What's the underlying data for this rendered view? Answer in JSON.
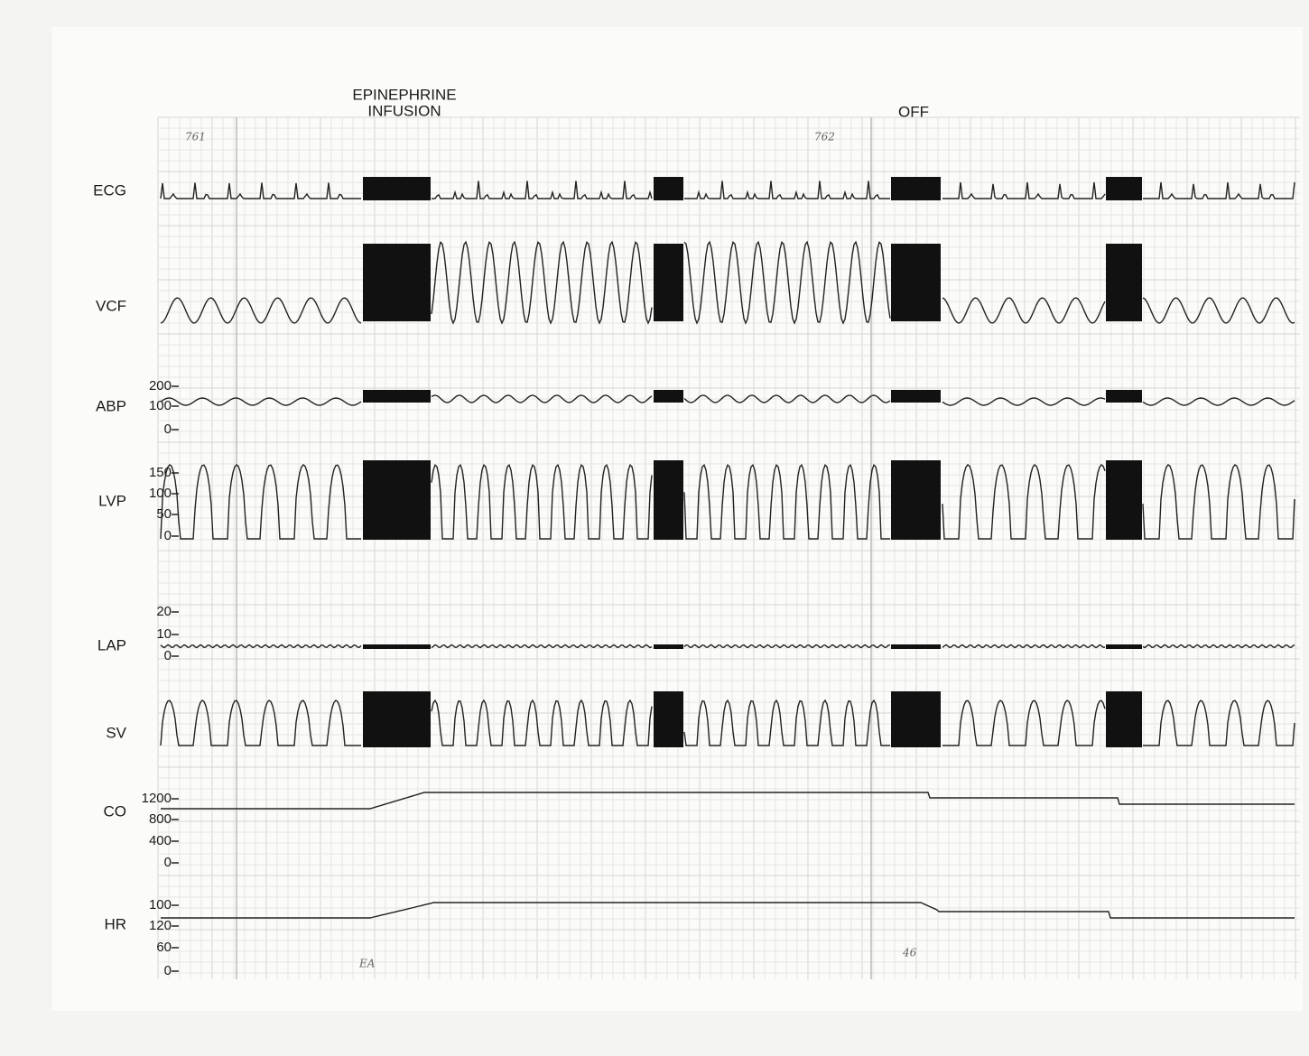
{
  "annotations": {
    "infusion": [
      "EPINEPHRINE",
      "INFUSION"
    ],
    "off": "OFF"
  },
  "page_marks": [
    "761",
    "762"
  ],
  "handwritten": [
    "EA",
    "46"
  ],
  "channels": [
    {
      "label": "ECG"
    },
    {
      "label": "VCF"
    },
    {
      "label": "ABP",
      "scale": [
        "200",
        "100",
        "0"
      ]
    },
    {
      "label": "LVP",
      "scale": [
        "150",
        "100",
        "50",
        "0"
      ]
    },
    {
      "label": "LAP",
      "scale": [
        "20",
        "10",
        "0"
      ]
    },
    {
      "label": "SV"
    },
    {
      "label": "CO",
      "scale": [
        "1200",
        "800",
        "400",
        "0"
      ]
    },
    {
      "label": "HR",
      "scale": [
        "100",
        "120",
        "60",
        "0"
      ]
    }
  ]
}
